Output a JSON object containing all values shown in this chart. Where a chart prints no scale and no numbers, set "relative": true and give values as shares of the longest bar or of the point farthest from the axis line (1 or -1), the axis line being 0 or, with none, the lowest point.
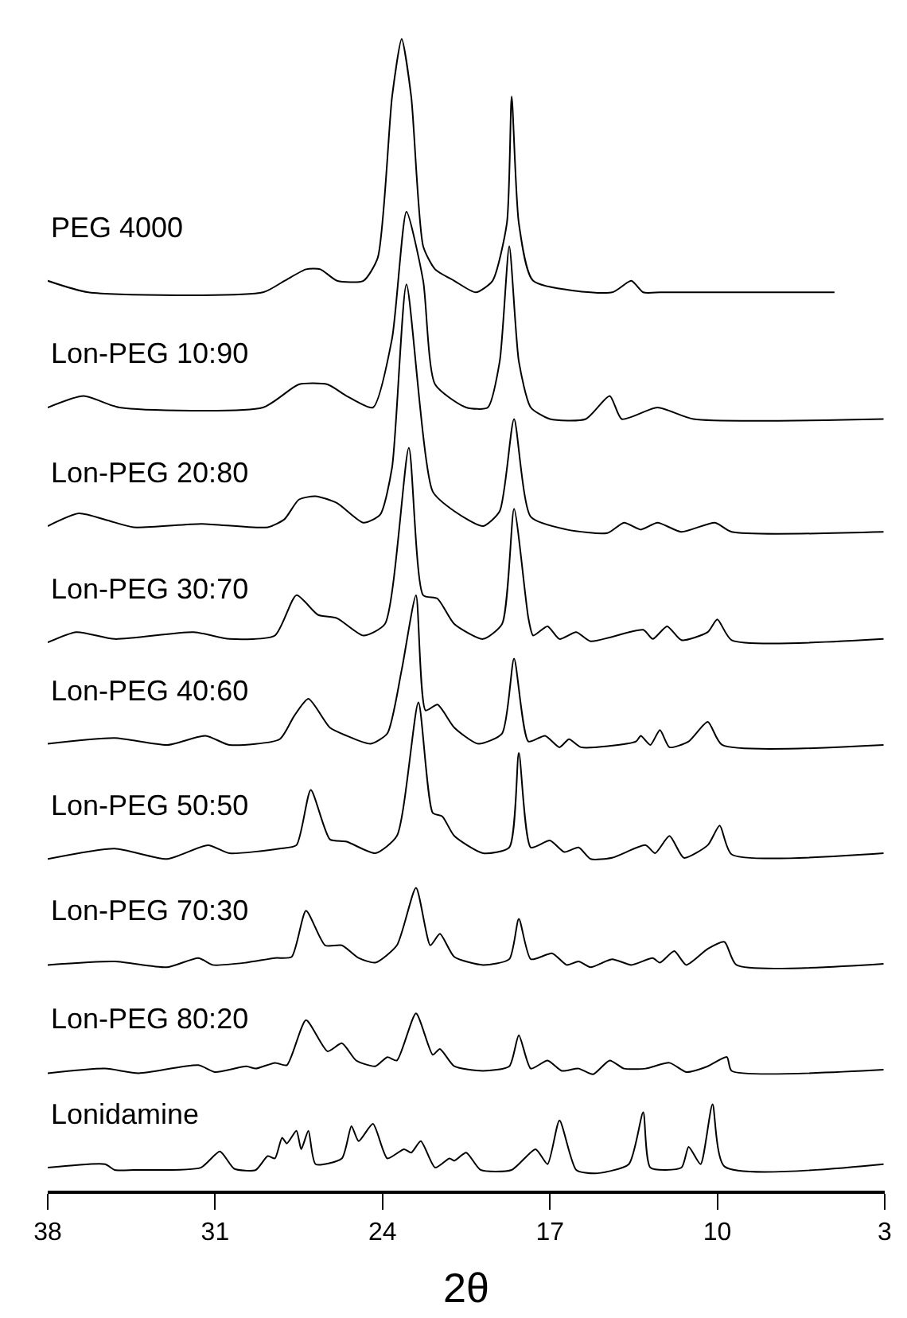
{
  "chart_data": {
    "type": "line",
    "relative": true,
    "xlabel": "2θ",
    "xlim": [
      38,
      3
    ],
    "xticks": [
      38,
      31,
      24,
      17,
      10,
      3
    ],
    "tick_labels": "x",
    "series": [
      {
        "name": "PEG 4000",
        "color": "#000000",
        "x": [
          38,
          36.3,
          29.0,
          28.1,
          27.2,
          26.6,
          25.9,
          24.8,
          24.2,
          23.6,
          23.2,
          22.8,
          22.3,
          21.8,
          21.0,
          20.1,
          19.4,
          18.8,
          18.6,
          18.3,
          17.7,
          14.4,
          13.6,
          13.1,
          12.4,
          11.8,
          5.1
        ],
        "values": [
          0.79,
          0.78,
          0.78,
          0.79,
          0.8,
          0.8,
          0.79,
          0.79,
          0.81,
          0.95,
          1.0,
          0.95,
          0.82,
          0.8,
          0.79,
          0.78,
          0.79,
          0.84,
          0.95,
          0.84,
          0.79,
          0.78,
          0.79,
          0.78,
          0.78,
          0.78,
          0.78
        ]
      },
      {
        "name": "Lon-PEG 10:90",
        "color": "#000000",
        "x": [
          38,
          36.5,
          35,
          29,
          27.5,
          26.3,
          25.5,
          24.4,
          23.6,
          23.0,
          22.3,
          21.8,
          20.5,
          19.6,
          19.1,
          18.7,
          18.3,
          17.8,
          17.0,
          15.5,
          14.5,
          14.0,
          12.5,
          11.0,
          3.05
        ],
        "values": [
          0.68,
          0.69,
          0.68,
          0.68,
          0.7,
          0.7,
          0.69,
          0.68,
          0.74,
          0.85,
          0.79,
          0.7,
          0.68,
          0.68,
          0.72,
          0.82,
          0.72,
          0.68,
          0.67,
          0.67,
          0.69,
          0.67,
          0.68,
          0.67,
          0.67
        ]
      },
      {
        "name": "Lon-PEG 20:80",
        "color": "#000000",
        "x": [
          38,
          36.7,
          35.5,
          34.4,
          31.6,
          28.8,
          28.1,
          27.5,
          26.8,
          25.9,
          24.8,
          24.1,
          23.6,
          23.0,
          21.9,
          21.0,
          19.8,
          19.1,
          18.5,
          17.8,
          16.3,
          14.6,
          13.9,
          13.2,
          12.5,
          11.5,
          10.1,
          9.4,
          3.05
        ],
        "values": [
          0.577,
          0.588,
          0.582,
          0.576,
          0.579,
          0.576,
          0.583,
          0.6,
          0.603,
          0.597,
          0.58,
          0.587,
          0.628,
          0.787,
          0.607,
          0.59,
          0.577,
          0.59,
          0.67,
          0.585,
          0.574,
          0.571,
          0.58,
          0.574,
          0.58,
          0.572,
          0.58,
          0.572,
          0.572
        ]
      },
      {
        "name": "Lon-PEG 30:70",
        "color": "#000000",
        "x": [
          38,
          36.8,
          35.2,
          31.9,
          30.4,
          28.5,
          27.6,
          26.7,
          25.9,
          24.8,
          23.9,
          22.9,
          22.3,
          21.7,
          21.0,
          19.8,
          19.0,
          18.5,
          17.9,
          17.7,
          17.1,
          16.6,
          15.9,
          15.3,
          13.1,
          12.7,
          12.1,
          11.5,
          10.4,
          10.0,
          9.4,
          3.05
        ],
        "values": [
          0.476,
          0.485,
          0.479,
          0.485,
          0.479,
          0.482,
          0.517,
          0.5,
          0.497,
          0.482,
          0.492,
          0.645,
          0.517,
          0.514,
          0.492,
          0.479,
          0.492,
          0.592,
          0.497,
          0.482,
          0.49,
          0.479,
          0.485,
          0.477,
          0.487,
          0.479,
          0.49,
          0.478,
          0.485,
          0.496,
          0.478,
          0.479
        ]
      },
      {
        "name": "Lon-PEG 40:60",
        "color": "#000000",
        "x": [
          38,
          35.2,
          33.0,
          31.4,
          30.4,
          28.3,
          27.7,
          27.1,
          26.2,
          25.5,
          24.5,
          23.8,
          23.2,
          22.6,
          22.2,
          21.7,
          21.0,
          20.0,
          19.0,
          18.5,
          17.9,
          17.2,
          16.6,
          16.2,
          15.7,
          13.4,
          13.2,
          12.8,
          12.4,
          12.0,
          11.2,
          10.4,
          9.8,
          3.05
        ],
        "values": [
          0.388,
          0.393,
          0.387,
          0.395,
          0.387,
          0.392,
          0.412,
          0.427,
          0.402,
          0.395,
          0.388,
          0.397,
          0.452,
          0.517,
          0.417,
          0.422,
          0.402,
          0.388,
          0.397,
          0.462,
          0.39,
          0.395,
          0.385,
          0.392,
          0.385,
          0.39,
          0.395,
          0.387,
          0.4,
          0.385,
          0.39,
          0.407,
          0.387,
          0.387
        ]
      },
      {
        "name": "Lon-PEG 50:50",
        "color": "#000000",
        "x": [
          38,
          35.2,
          33.0,
          31.3,
          30.4,
          28.3,
          27.6,
          27.0,
          26.2,
          25.5,
          24.3,
          23.4,
          22.5,
          21.9,
          21.5,
          21.0,
          19.8,
          18.7,
          18.3,
          17.8,
          17.0,
          16.4,
          15.8,
          15.3,
          14.4,
          13.0,
          12.6,
          12.0,
          11.4,
          10.4,
          9.9,
          9.4,
          3.05
        ],
        "values": [
          0.288,
          0.297,
          0.288,
          0.3,
          0.293,
          0.297,
          0.3,
          0.348,
          0.305,
          0.303,
          0.293,
          0.308,
          0.424,
          0.328,
          0.325,
          0.308,
          0.293,
          0.298,
          0.38,
          0.298,
          0.304,
          0.294,
          0.298,
          0.288,
          0.289,
          0.3,
          0.293,
          0.308,
          0.289,
          0.3,
          0.317,
          0.292,
          0.293
        ]
      },
      {
        "name": "Lon-PEG 70:30",
        "color": "#000000",
        "x": [
          38,
          35.2,
          33.0,
          31.7,
          31.1,
          29.7,
          28.5,
          27.8,
          27.2,
          26.4,
          25.7,
          25.0,
          24.3,
          23.4,
          22.6,
          22.0,
          21.6,
          21.0,
          19.8,
          18.7,
          18.3,
          17.8,
          16.9,
          16.3,
          15.8,
          15.3,
          14.4,
          13.6,
          12.7,
          12.4,
          11.8,
          11.3,
          10.4,
          9.7,
          9.2,
          3.05
        ],
        "values": [
          0.196,
          0.199,
          0.194,
          0.202,
          0.196,
          0.198,
          0.202,
          0.203,
          0.243,
          0.213,
          0.213,
          0.202,
          0.198,
          0.213,
          0.263,
          0.213,
          0.223,
          0.203,
          0.196,
          0.201,
          0.236,
          0.201,
          0.206,
          0.196,
          0.199,
          0.194,
          0.201,
          0.196,
          0.202,
          0.198,
          0.208,
          0.196,
          0.21,
          0.216,
          0.196,
          0.197
        ]
      },
      {
        "name": "Lon-PEG 80:20",
        "color": "#000000",
        "x": [
          38,
          35.6,
          34.2,
          31.7,
          31.0,
          29.7,
          29.3,
          28.5,
          28.0,
          27.2,
          26.3,
          25.7,
          25.1,
          24.3,
          23.8,
          23.4,
          22.6,
          21.9,
          21.6,
          21.0,
          19.8,
          18.7,
          18.3,
          17.8,
          17.1,
          16.5,
          15.8,
          15.2,
          14.5,
          13.9,
          13.0,
          12.0,
          11.3,
          10.4,
          9.6,
          9.4,
          3.05
        ],
        "values": [
          0.102,
          0.106,
          0.102,
          0.109,
          0.103,
          0.108,
          0.106,
          0.111,
          0.109,
          0.148,
          0.121,
          0.128,
          0.113,
          0.108,
          0.116,
          0.113,
          0.154,
          0.118,
          0.123,
          0.108,
          0.104,
          0.108,
          0.135,
          0.106,
          0.113,
          0.104,
          0.106,
          0.101,
          0.113,
          0.106,
          0.106,
          0.111,
          0.103,
          0.108,
          0.116,
          0.104,
          0.105
        ]
      },
      {
        "name": "Lonidamine",
        "color": "#000000",
        "x": [
          38,
          35.6,
          35.2,
          34.4,
          31.6,
          30.8,
          30.2,
          29.3,
          28.8,
          28.5,
          28.2,
          28.0,
          27.6,
          27.4,
          27.1,
          26.8,
          25.7,
          25.3,
          25.0,
          24.4,
          23.8,
          23.1,
          22.8,
          22.4,
          21.8,
          21.2,
          21.0,
          20.5,
          19.9,
          18.6,
          17.6,
          17.1,
          16.6,
          15.9,
          15.1,
          13.7,
          13.1,
          12.8,
          11.5,
          11.2,
          10.7,
          10.2,
          9.7,
          3.05
        ],
        "values": [
          0.02,
          0.023,
          0.018,
          0.018,
          0.02,
          0.034,
          0.019,
          0.018,
          0.03,
          0.028,
          0.046,
          0.041,
          0.052,
          0.036,
          0.052,
          0.023,
          0.028,
          0.056,
          0.043,
          0.058,
          0.028,
          0.036,
          0.033,
          0.043,
          0.02,
          0.028,
          0.026,
          0.033,
          0.018,
          0.018,
          0.036,
          0.023,
          0.061,
          0.018,
          0.015,
          0.023,
          0.068,
          0.02,
          0.02,
          0.038,
          0.023,
          0.075,
          0.021,
          0.023
        ]
      }
    ]
  }
}
